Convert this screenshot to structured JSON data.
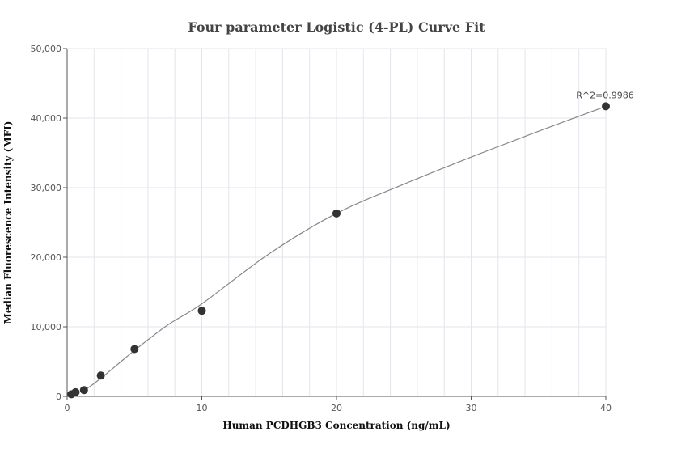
{
  "chart_data": {
    "type": "scatter",
    "title": "Four parameter Logistic (4-PL) Curve Fit",
    "xlabel": "Human PCDHGB3 Concentration (ng/mL)",
    "ylabel": "Median Fluorescence Intensity (MFI)",
    "xlim": [
      0,
      40
    ],
    "ylim": [
      0,
      50000
    ],
    "x_ticks": [
      0,
      10,
      20,
      30,
      40
    ],
    "x_tick_labels": [
      "0",
      "10",
      "20",
      "30",
      "40"
    ],
    "y_ticks": [
      0,
      10000,
      20000,
      30000,
      40000,
      50000
    ],
    "y_tick_labels": [
      "0",
      "10,000",
      "20,000",
      "30,000",
      "40,000",
      "50,000"
    ],
    "grid": true,
    "series": [
      {
        "points": [
          {
            "x": 0.3125,
            "y": 300
          },
          {
            "x": 0.625,
            "y": 600
          },
          {
            "x": 1.25,
            "y": 900
          },
          {
            "x": 2.5,
            "y": 3000
          },
          {
            "x": 5,
            "y": 6800
          },
          {
            "x": 10,
            "y": 12300
          },
          {
            "x": 20,
            "y": 26300
          },
          {
            "x": 40,
            "y": 41700
          }
        ]
      }
    ],
    "fit_curve": [
      {
        "x": 0,
        "y": 0
      },
      {
        "x": 1.25,
        "y": 900
      },
      {
        "x": 2.5,
        "y": 2600
      },
      {
        "x": 5,
        "y": 6600
      },
      {
        "x": 7.5,
        "y": 10300
      },
      {
        "x": 10,
        "y": 13300
      },
      {
        "x": 15,
        "y": 20500
      },
      {
        "x": 20,
        "y": 26300
      },
      {
        "x": 25,
        "y": 30500
      },
      {
        "x": 30,
        "y": 34400
      },
      {
        "x": 35,
        "y": 38100
      },
      {
        "x": 40,
        "y": 41700
      }
    ],
    "annotation": {
      "text": "R^2=0.9986",
      "x": 40,
      "y": 41700
    }
  }
}
